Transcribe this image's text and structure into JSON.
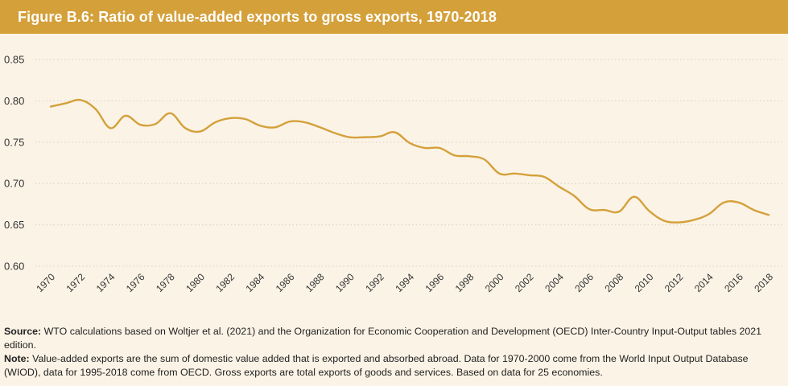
{
  "header": {
    "title": "Figure B.6: Ratio of value-added exports to gross exports, 1970-2018"
  },
  "colors": {
    "title_bar": "#d4a03a",
    "line": "#d4a03a",
    "background": "#fbf3e6",
    "grid": "#d8d0c2"
  },
  "chart_data": {
    "type": "line",
    "title": "Figure B.6: Ratio of value-added exports to gross exports, 1970-2018",
    "xlabel": "",
    "ylabel": "",
    "ylim": [
      0.6,
      0.85
    ],
    "yticks": [
      "0.85",
      "0.80",
      "0.75",
      "0.70",
      "0.65",
      "0.60"
    ],
    "xticks": [
      "1970",
      "1972",
      "1974",
      "1976",
      "1978",
      "1980",
      "1982",
      "1984",
      "1986",
      "1988",
      "1990",
      "1992",
      "1994",
      "1996",
      "1998",
      "2000",
      "2002",
      "2004",
      "2006",
      "2008",
      "2010",
      "2012",
      "2014",
      "2016",
      "2018"
    ],
    "grid": "horizontal dotted",
    "legend": "none",
    "x": [
      1970,
      1971,
      1972,
      1973,
      1974,
      1975,
      1976,
      1977,
      1978,
      1979,
      1980,
      1981,
      1982,
      1983,
      1984,
      1985,
      1986,
      1987,
      1988,
      1989,
      1990,
      1991,
      1992,
      1993,
      1994,
      1995,
      1996,
      1997,
      1998,
      1999,
      2000,
      2001,
      2002,
      2003,
      2004,
      2005,
      2006,
      2007,
      2008,
      2009,
      2010,
      2011,
      2012,
      2013,
      2014,
      2015,
      2016,
      2017,
      2018
    ],
    "series": [
      {
        "values": [
          0.793,
          0.797,
          0.801,
          0.79,
          0.767,
          0.782,
          0.771,
          0.772,
          0.785,
          0.767,
          0.763,
          0.774,
          0.779,
          0.778,
          0.77,
          0.768,
          0.775,
          0.774,
          0.768,
          0.761,
          0.756,
          0.756,
          0.757,
          0.762,
          0.749,
          0.743,
          0.743,
          0.734,
          0.733,
          0.729,
          0.712,
          0.712,
          0.71,
          0.708,
          0.696,
          0.685,
          0.669,
          0.668,
          0.666,
          0.684,
          0.667,
          0.655,
          0.653,
          0.656,
          0.663,
          0.677,
          0.677,
          0.668,
          0.662
        ]
      }
    ]
  },
  "footer": {
    "source_label": "Source:",
    "source_text": " WTO calculations based on Woltjer et al. (2021) and the Organization for Economic Cooperation and Development (OECD) Inter-Country Input-Output tables 2021 edition.",
    "note_label": "Note:",
    "note_text": " Value-added exports are the sum of domestic value added that is exported and absorbed abroad. Data for 1970-2000 come from the World Input Output Database (WIOD), data for 1995-2018 come from OECD. Gross exports are total exports of goods and services. Based on data for 25 economies."
  }
}
